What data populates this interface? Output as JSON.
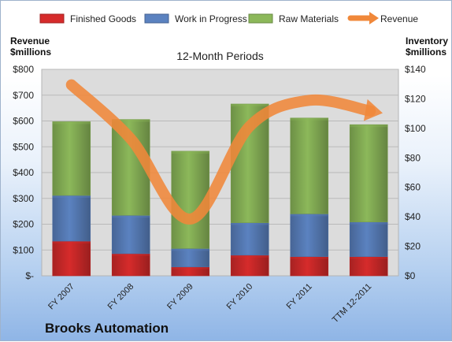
{
  "chart_data": {
    "type": "bar",
    "subtitle": "12-Month Periods",
    "company": "Brooks Automation",
    "left_axis_label": [
      "Revenue",
      "$millions"
    ],
    "right_axis_label": [
      "Inventory",
      "$millions"
    ],
    "categories": [
      "FY 2007",
      "FY 2008",
      "FY 2009",
      "FY 2010",
      "FY 2011",
      "TTM 12-2011"
    ],
    "stacked": true,
    "series": [
      {
        "name": "Finished Goods",
        "color": "#d62b2b",
        "axis": "right",
        "values": [
          23.5,
          15,
          6,
          14,
          13,
          13
        ]
      },
      {
        "name": "Work in Progress",
        "color": "#5b82c0",
        "axis": "right",
        "values": [
          31,
          26,
          12.5,
          22,
          29,
          23.5
        ]
      },
      {
        "name": "Raw Materials",
        "color": "#8cb85a",
        "axis": "right",
        "values": [
          50,
          65,
          66,
          80.5,
          65,
          66
        ]
      }
    ],
    "line_series": {
      "name": "Revenue",
      "color": "#f0883a",
      "axis": "left",
      "values": [
        740,
        530,
        220,
        580,
        680,
        640
      ]
    },
    "left_axis": {
      "min": 0,
      "max": 800,
      "ticks": [
        "$-",
        "$100",
        "$200",
        "$300",
        "$400",
        "$500",
        "$600",
        "$700",
        "$800"
      ]
    },
    "right_axis": {
      "min": 0,
      "max": 140,
      "ticks": [
        "$0",
        "$20",
        "$40",
        "$60",
        "$80",
        "$100",
        "$120",
        "$140"
      ]
    },
    "legend": "top",
    "grid": true
  }
}
